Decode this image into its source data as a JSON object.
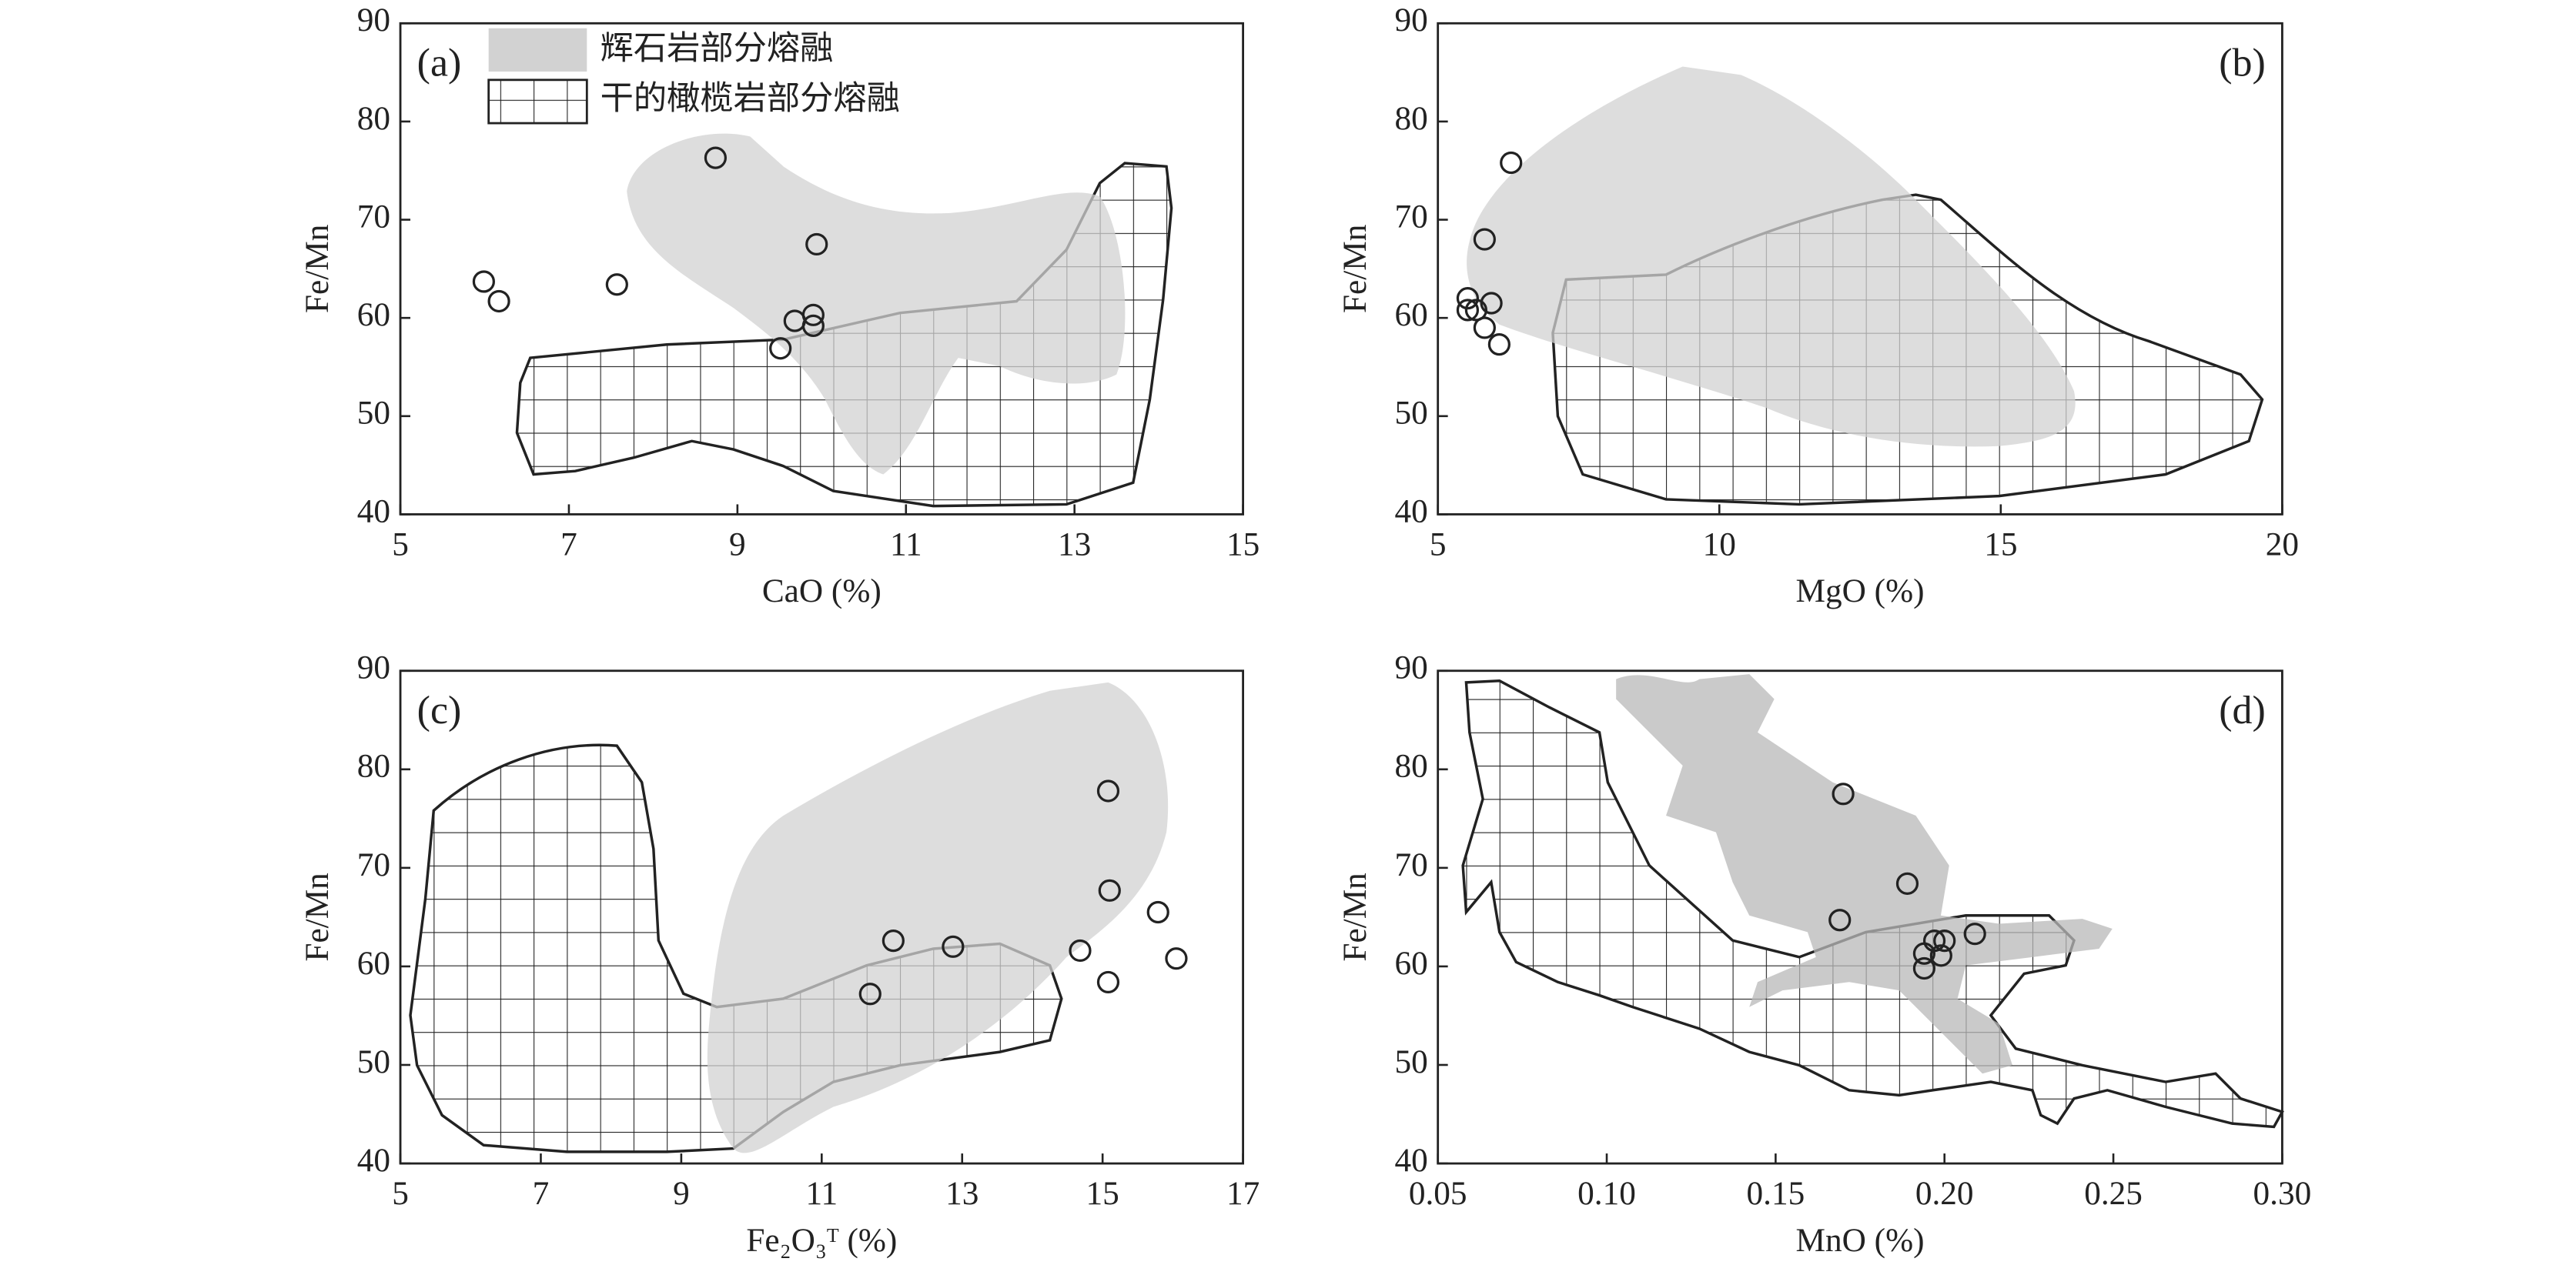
{
  "chart_data": [
    {
      "type": "scatter",
      "panel": "(a)",
      "xlabel": "CaO (%)",
      "ylabel": "Fe/Mn",
      "legend": [
        {
          "name": "辉石岩部分熔融",
          "color": "#d2d2d2"
        },
        {
          "name": "干的橄榄岩部分熔融"
        }
      ],
      "x": [
        5.99,
        6.17,
        7.57,
        8.74,
        9.94,
        9.68,
        9.9,
        9.9,
        9.51
      ],
      "values": [
        63.7,
        61.7,
        63.4,
        76.3,
        67.5,
        59.7,
        60.3,
        59.2,
        56.9
      ],
      "xlim": [
        5,
        15
      ],
      "xticks": [
        5,
        7,
        9,
        11,
        13,
        15
      ],
      "ylim": [
        40,
        90
      ],
      "yticks": [
        40,
        50,
        60,
        70,
        80,
        90
      ]
    },
    {
      "type": "scatter",
      "panel": "(b)",
      "xlabel": "MgO (%)",
      "ylabel": "Fe/Mn",
      "x": [
        6.3,
        5.83,
        5.53,
        5.68,
        5.53,
        5.95,
        5.83,
        6.09
      ],
      "values": [
        75.8,
        68.0,
        62.0,
        60.8,
        60.8,
        61.5,
        59.0,
        57.3
      ],
      "xlim": [
        5,
        20
      ],
      "xticks": [
        5,
        10,
        15,
        20
      ],
      "ylim": [
        40,
        90
      ],
      "yticks": [
        40,
        50,
        60,
        70,
        80,
        90
      ]
    },
    {
      "type": "scatter",
      "panel": "(c)",
      "xlabel": "Fe₂O₃ᵀ (%)",
      "ylabel": "Fe/Mn",
      "x": [
        15.08,
        15.1,
        15.79,
        16.05,
        15.08,
        14.68,
        12.87,
        12.02,
        11.69
      ],
      "values": [
        77.8,
        67.7,
        65.5,
        60.8,
        58.4,
        61.6,
        62.0,
        62.6,
        57.2
      ],
      "xlim": [
        5,
        17
      ],
      "xticks": [
        5,
        7,
        9,
        11,
        13,
        15,
        17
      ],
      "ylim": [
        40,
        90
      ],
      "yticks": [
        40,
        50,
        60,
        70,
        80,
        90
      ]
    },
    {
      "type": "scatter",
      "panel": "(d)",
      "xlabel": "MnO (%)",
      "ylabel": "Fe/Mn",
      "x": [
        0.17,
        0.189,
        0.169,
        0.209,
        0.197,
        0.2,
        0.199,
        0.194,
        0.194
      ],
      "values": [
        77.5,
        68.4,
        64.7,
        63.3,
        62.6,
        62.6,
        61.1,
        61.3,
        59.8
      ],
      "xlim": [
        0.05,
        0.3
      ],
      "xticks": [
        0.05,
        {
          "value": 0.1,
          "label": "0.10"
        },
        0.15,
        {
          "value": 0.2,
          "label": "0.20"
        },
        0.25,
        {
          "value": 0.3,
          "label": "0.30"
        }
      ],
      "ylim": [
        40,
        90
      ],
      "yticks": [
        40,
        50,
        60,
        70,
        80,
        90
      ]
    }
  ]
}
